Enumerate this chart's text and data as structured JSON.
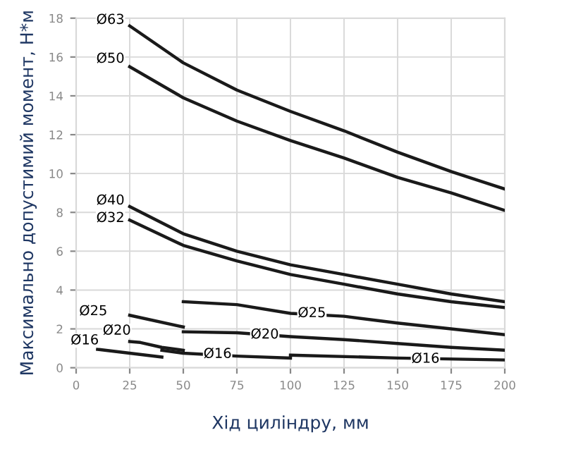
{
  "chart_data": {
    "type": "line",
    "xlabel": "Хід циліндру, мм",
    "ylabel": "Максимально допустимий момент, Н*м",
    "xlim": [
      0,
      200
    ],
    "xticks": [
      0,
      25,
      50,
      75,
      100,
      125,
      150,
      175,
      200
    ],
    "ylim": [
      0,
      18
    ],
    "yticks": [
      0,
      2,
      4,
      6,
      8,
      10,
      12,
      14,
      16,
      18
    ],
    "grid": true,
    "marker": "none",
    "line_style": "solid",
    "series": [
      {
        "color": "#1a1a1a",
        "x": [
          25,
          50,
          75,
          100,
          125,
          150,
          175,
          200
        ],
        "values": [
          17.6,
          15.7,
          14.3,
          13.2,
          12.2,
          11.1,
          10.1,
          9.2
        ]
      },
      {
        "color": "#1a1a1a",
        "x": [
          25,
          50,
          75,
          100,
          125,
          150,
          175,
          200
        ],
        "values": [
          15.5,
          13.9,
          12.7,
          11.7,
          10.8,
          9.8,
          9.0,
          8.1
        ]
      },
      {
        "color": "#1a1a1a",
        "x": [
          25,
          50,
          75,
          100,
          125,
          150,
          175,
          200
        ],
        "values": [
          8.3,
          6.9,
          6.0,
          5.3,
          4.8,
          4.3,
          3.8,
          3.4
        ]
      },
      {
        "color": "#1a1a1a",
        "x": [
          25,
          50,
          75,
          100,
          125,
          150,
          175,
          200
        ],
        "values": [
          7.6,
          6.3,
          5.5,
          4.8,
          4.3,
          3.8,
          3.4,
          3.1
        ]
      },
      {
        "color": "#1a1a1a",
        "x": [
          25,
          50
        ],
        "values": [
          2.7,
          2.1
        ]
      },
      {
        "color": "#1a1a1a",
        "x": [
          50,
          75,
          100,
          125,
          150,
          175,
          200
        ],
        "values": [
          3.4,
          3.25,
          2.8,
          2.65,
          2.3,
          2.0,
          1.7
        ]
      },
      {
        "color": "#1a1a1a",
        "x": [
          25,
          30,
          40,
          50
        ],
        "values": [
          1.35,
          1.3,
          1.05,
          0.9
        ]
      },
      {
        "color": "#1a1a1a",
        "x": [
          50,
          75,
          100,
          125,
          150,
          175,
          200
        ],
        "values": [
          1.85,
          1.8,
          1.6,
          1.45,
          1.25,
          1.05,
          0.9
        ]
      },
      {
        "color": "#1a1a1a",
        "x": [
          10,
          25,
          40
        ],
        "values": [
          0.95,
          0.75,
          0.55
        ]
      },
      {
        "color": "#1a1a1a",
        "x": [
          40,
          50,
          75,
          100
        ],
        "values": [
          0.9,
          0.75,
          0.6,
          0.5
        ]
      },
      {
        "color": "#1a1a1a",
        "x": [
          100,
          150,
          200
        ],
        "values": [
          0.65,
          0.5,
          0.4
        ]
      }
    ],
    "annotations": [
      {
        "text": "Ø63",
        "x": 16,
        "y": 17.9
      },
      {
        "text": "Ø50",
        "x": 16,
        "y": 15.9
      },
      {
        "text": "Ø40",
        "x": 16,
        "y": 8.6
      },
      {
        "text": "Ø32",
        "x": 16,
        "y": 7.7
      },
      {
        "text": "Ø25",
        "x": 8,
        "y": 2.9
      },
      {
        "text": "Ø20",
        "x": 19,
        "y": 1.9
      },
      {
        "text": "Ø16",
        "x": 4,
        "y": 1.4
      },
      {
        "text": "Ø25",
        "x": 110,
        "y": 2.8
      },
      {
        "text": "Ø20",
        "x": 88,
        "y": 1.7
      },
      {
        "text": "Ø16",
        "x": 66,
        "y": 0.7
      },
      {
        "text": "Ø16",
        "x": 163,
        "y": 0.45
      }
    ]
  }
}
